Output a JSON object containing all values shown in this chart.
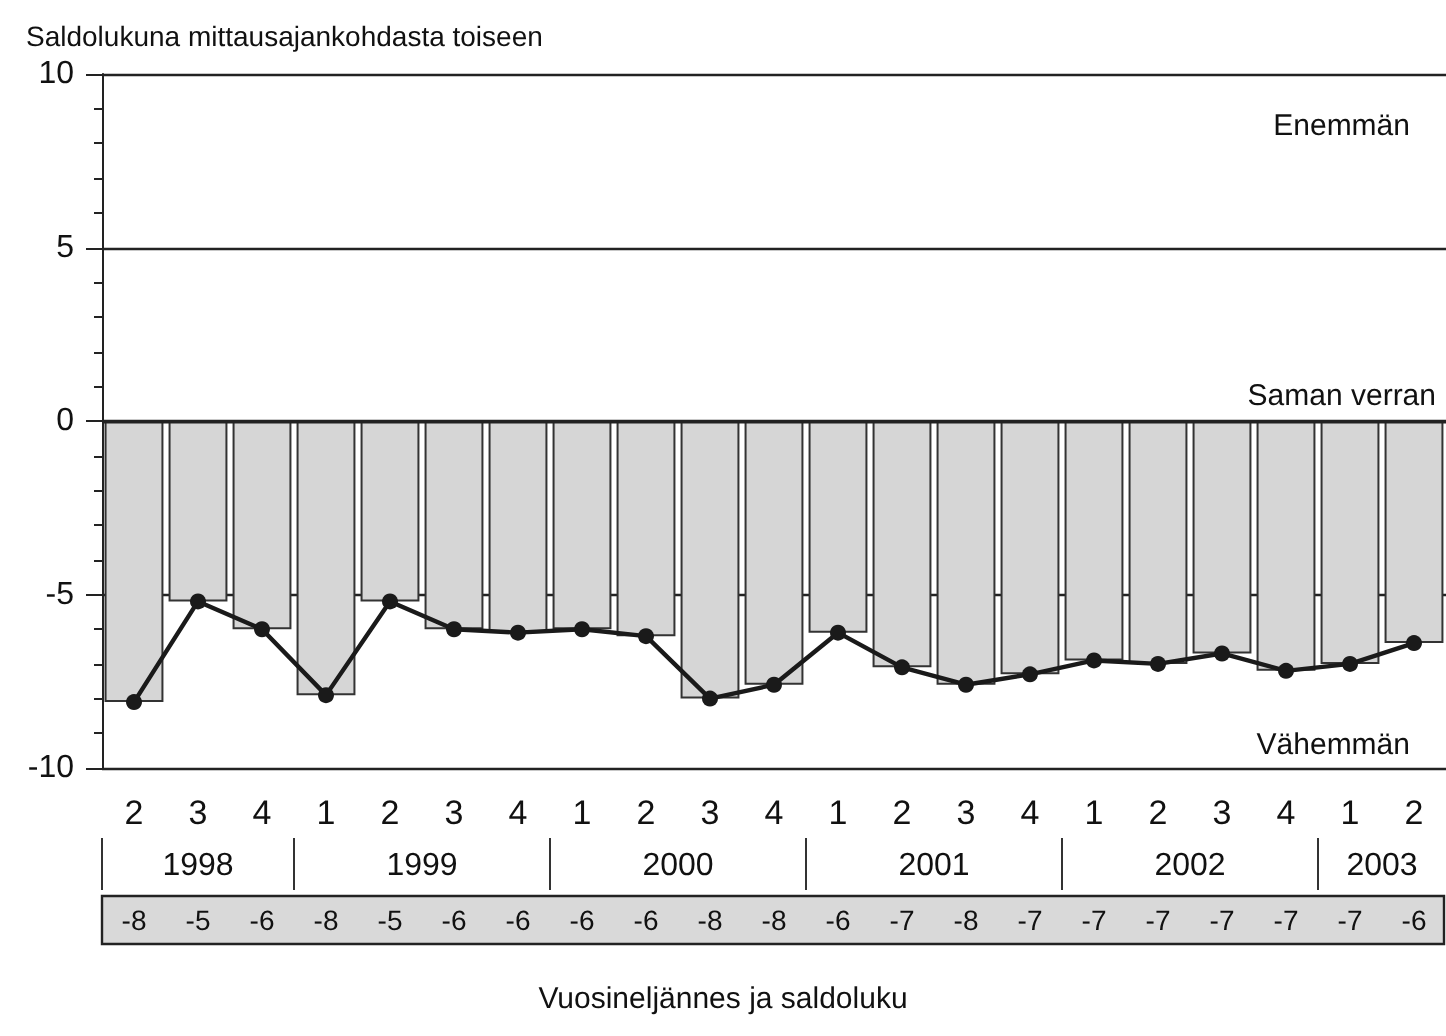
{
  "chart_data": {
    "type": "bar",
    "ylabel": "Saldolukuna mittausajankohdasta toiseen",
    "xlabel": "Vuosineljännes ja saldoluku",
    "categories": [
      "2",
      "3",
      "4",
      "1",
      "2",
      "3",
      "4",
      "1",
      "2",
      "3",
      "4",
      "1",
      "2",
      "3",
      "4",
      "1",
      "2",
      "3",
      "4",
      "1",
      "2"
    ],
    "series": [
      {
        "color": "#d6d6d6",
        "values": [
          -8.1,
          -5.2,
          -6.0,
          -7.9,
          -5.2,
          -6.0,
          -6.1,
          -6.0,
          -6.2,
          -8.0,
          -7.6,
          -6.1,
          -7.1,
          -7.6,
          -7.3,
          -6.9,
          -7.0,
          -6.7,
          -7.2,
          -7.0,
          -6.4
        ]
      },
      {
        "type": "line",
        "color": "#1a1a1a",
        "marker": "circle",
        "values": [
          -8.1,
          -5.2,
          -6.0,
          -7.9,
          -5.2,
          -6.0,
          -6.1,
          -6.0,
          -6.2,
          -8.0,
          -7.6,
          -6.1,
          -7.1,
          -7.6,
          -7.3,
          -6.9,
          -7.0,
          -6.7,
          -7.2,
          -7.0,
          -6.4
        ],
        "value_labels": [
          "-8",
          "-5",
          "-6",
          "-8",
          "-5",
          "-6",
          "-6",
          "-6",
          "-6",
          "-8",
          "-8",
          "-6",
          "-7",
          "-8",
          "-7",
          "-7",
          "-7",
          "-7",
          "-7",
          "-7",
          "-6"
        ]
      }
    ],
    "ylim": [
      -10,
      10
    ],
    "yticks": [
      -10,
      -5,
      0,
      5,
      10
    ],
    "grid": "y",
    "ref_lines": [
      {
        "axis": "y",
        "value": 0,
        "label": "Saman verran"
      }
    ],
    "annotations": [
      "Enemmän",
      "Vähemmän",
      "1998",
      "1999",
      "2000",
      "2001",
      "2002",
      "2003"
    ]
  }
}
